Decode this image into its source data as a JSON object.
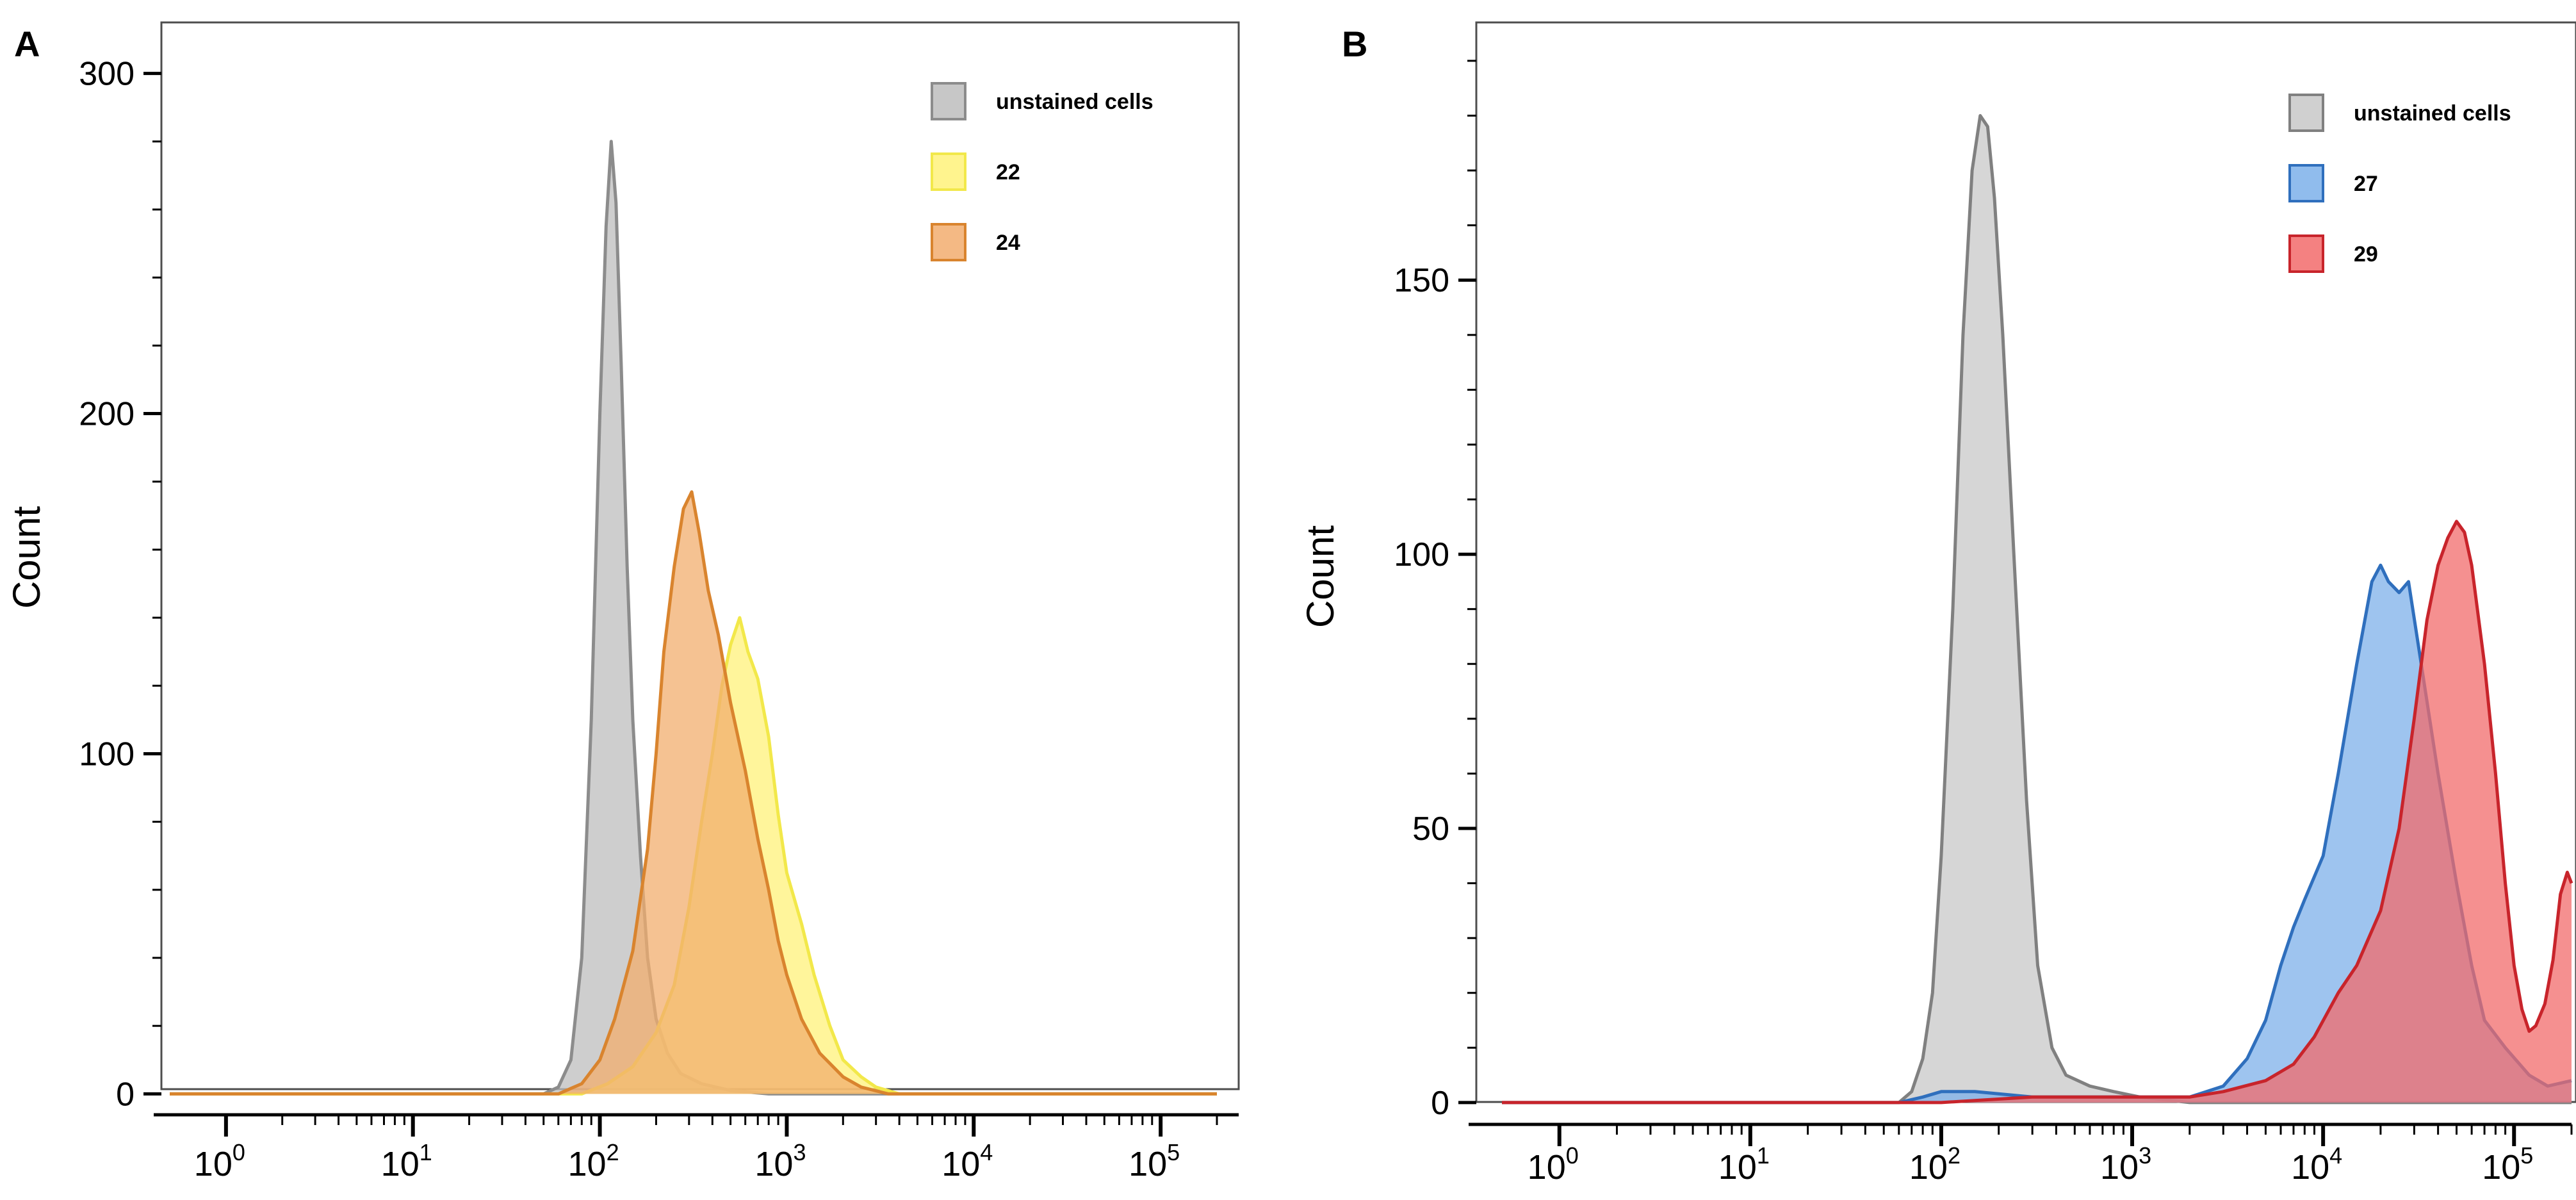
{
  "chart_data": [
    {
      "panel": "A",
      "type": "area",
      "title": "",
      "xlabel": "",
      "ylabel": "Count",
      "xscale": "log",
      "xlim": [
        0.5,
        200000
      ],
      "ylim": [
        -2,
        315
      ],
      "yticks": [
        0,
        100,
        200,
        300
      ],
      "xticks": [
        {
          "base": "10",
          "exp": "0",
          "value": 1
        },
        {
          "base": "10",
          "exp": "1",
          "value": 10
        },
        {
          "base": "10",
          "exp": "2",
          "value": 100
        },
        {
          "base": "10",
          "exp": "3",
          "value": 1000
        },
        {
          "base": "10",
          "exp": "4",
          "value": 10000
        },
        {
          "base": "10",
          "exp": "5",
          "value": 100000
        }
      ],
      "legend_position": "top-right",
      "series": [
        {
          "name": "unstained cells",
          "color": "#8c8c8c",
          "fill": "#bdbdbd",
          "points": [
            [
              0.5,
              0
            ],
            [
              50,
              0
            ],
            [
              60,
              2
            ],
            [
              70,
              10
            ],
            [
              80,
              40
            ],
            [
              90,
              110
            ],
            [
              100,
              200
            ],
            [
              108,
              255
            ],
            [
              115,
              280
            ],
            [
              122,
              262
            ],
            [
              130,
              215
            ],
            [
              140,
              155
            ],
            [
              150,
              110
            ],
            [
              165,
              70
            ],
            [
              180,
              40
            ],
            [
              200,
              22
            ],
            [
              230,
              12
            ],
            [
              270,
              6
            ],
            [
              350,
              3
            ],
            [
              500,
              1
            ],
            [
              800,
              0
            ],
            [
              200000,
              0
            ]
          ]
        },
        {
          "name": "22",
          "color": "#f2e84a",
          "fill": "#fff27a",
          "points": [
            [
              0.5,
              0
            ],
            [
              80,
              0
            ],
            [
              110,
              3
            ],
            [
              150,
              8
            ],
            [
              200,
              18
            ],
            [
              250,
              32
            ],
            [
              300,
              55
            ],
            [
              350,
              80
            ],
            [
              400,
              100
            ],
            [
              450,
              120
            ],
            [
              500,
              132
            ],
            [
              560,
              140
            ],
            [
              620,
              130
            ],
            [
              700,
              122
            ],
            [
              800,
              105
            ],
            [
              900,
              82
            ],
            [
              1000,
              65
            ],
            [
              1200,
              50
            ],
            [
              1400,
              35
            ],
            [
              1700,
              20
            ],
            [
              2000,
              10
            ],
            [
              2500,
              5
            ],
            [
              3000,
              2
            ],
            [
              4000,
              0
            ],
            [
              200000,
              0
            ]
          ]
        },
        {
          "name": "24",
          "color": "#d9842e",
          "fill": "#f2ad6e",
          "points": [
            [
              0.5,
              0
            ],
            [
              60,
              0
            ],
            [
              80,
              3
            ],
            [
              100,
              10
            ],
            [
              120,
              22
            ],
            [
              150,
              42
            ],
            [
              180,
              72
            ],
            [
              200,
              100
            ],
            [
              220,
              130
            ],
            [
              250,
              155
            ],
            [
              280,
              172
            ],
            [
              310,
              177
            ],
            [
              340,
              165
            ],
            [
              380,
              148
            ],
            [
              430,
              135
            ],
            [
              500,
              115
            ],
            [
              600,
              95
            ],
            [
              700,
              75
            ],
            [
              800,
              60
            ],
            [
              900,
              45
            ],
            [
              1000,
              35
            ],
            [
              1200,
              22
            ],
            [
              1500,
              12
            ],
            [
              2000,
              5
            ],
            [
              2500,
              2
            ],
            [
              3500,
              0
            ],
            [
              200000,
              0
            ]
          ]
        }
      ]
    },
    {
      "panel": "B",
      "type": "area",
      "title": "",
      "xlabel": "",
      "ylabel": "Count",
      "xscale": "log",
      "xlim": [
        0.5,
        200000
      ],
      "ylim": [
        -2,
        197
      ],
      "yticks": [
        0,
        50,
        100,
        150
      ],
      "xticks": [
        {
          "base": "10",
          "exp": "0",
          "value": 1
        },
        {
          "base": "10",
          "exp": "1",
          "value": 10
        },
        {
          "base": "10",
          "exp": "2",
          "value": 100
        },
        {
          "base": "10",
          "exp": "3",
          "value": 1000
        },
        {
          "base": "10",
          "exp": "4",
          "value": 10000
        },
        {
          "base": "10",
          "exp": "5",
          "value": 100000
        }
      ],
      "legend_position": "top-right",
      "series": [
        {
          "name": "unstained cells",
          "color": "#808080",
          "fill": "#c8c8c8",
          "points": [
            [
              0.5,
              0
            ],
            [
              60,
              0
            ],
            [
              70,
              2
            ],
            [
              80,
              8
            ],
            [
              90,
              20
            ],
            [
              100,
              45
            ],
            [
              115,
              90
            ],
            [
              130,
              140
            ],
            [
              145,
              170
            ],
            [
              160,
              180
            ],
            [
              175,
              178
            ],
            [
              190,
              165
            ],
            [
              210,
              140
            ],
            [
              240,
              100
            ],
            [
              280,
              55
            ],
            [
              320,
              25
            ],
            [
              380,
              10
            ],
            [
              450,
              5
            ],
            [
              600,
              3
            ],
            [
              800,
              2
            ],
            [
              1100,
              1
            ],
            [
              2000,
              0
            ],
            [
              200000,
              0
            ]
          ]
        },
        {
          "name": "27",
          "color": "#2f6fbd",
          "fill": "#7db0ea",
          "points": [
            [
              0.5,
              0
            ],
            [
              60,
              0
            ],
            [
              80,
              1
            ],
            [
              100,
              2
            ],
            [
              150,
              2
            ],
            [
              300,
              1
            ],
            [
              1000,
              1
            ],
            [
              2000,
              1
            ],
            [
              3000,
              3
            ],
            [
              4000,
              8
            ],
            [
              5000,
              15
            ],
            [
              6000,
              25
            ],
            [
              7000,
              32
            ],
            [
              8000,
              37
            ],
            [
              10000,
              45
            ],
            [
              12000,
              60
            ],
            [
              15000,
              80
            ],
            [
              18000,
              95
            ],
            [
              20000,
              98
            ],
            [
              22000,
              95
            ],
            [
              25000,
              93
            ],
            [
              28000,
              95
            ],
            [
              32000,
              82
            ],
            [
              40000,
              60
            ],
            [
              50000,
              40
            ],
            [
              60000,
              25
            ],
            [
              70000,
              15
            ],
            [
              90000,
              10
            ],
            [
              120000,
              5
            ],
            [
              150000,
              3
            ],
            [
              200000,
              4
            ]
          ]
        },
        {
          "name": "29",
          "color": "#c8242b",
          "fill": "#f26b6b",
          "points": [
            [
              0.5,
              0
            ],
            [
              60,
              0
            ],
            [
              100,
              0
            ],
            [
              300,
              1
            ],
            [
              1000,
              1
            ],
            [
              2000,
              1
            ],
            [
              3000,
              2
            ],
            [
              5000,
              4
            ],
            [
              7000,
              7
            ],
            [
              9000,
              12
            ],
            [
              12000,
              20
            ],
            [
              15000,
              25
            ],
            [
              20000,
              35
            ],
            [
              25000,
              50
            ],
            [
              30000,
              70
            ],
            [
              35000,
              88
            ],
            [
              40000,
              98
            ],
            [
              45000,
              103
            ],
            [
              50000,
              106
            ],
            [
              55000,
              104
            ],
            [
              60000,
              98
            ],
            [
              70000,
              80
            ],
            [
              80000,
              60
            ],
            [
              90000,
              40
            ],
            [
              100000,
              25
            ],
            [
              110000,
              17
            ],
            [
              120000,
              13
            ],
            [
              130000,
              14
            ],
            [
              145000,
              18
            ],
            [
              160000,
              26
            ],
            [
              175000,
              38
            ],
            [
              190000,
              42
            ],
            [
              200000,
              40
            ]
          ]
        }
      ]
    }
  ],
  "panels": {
    "A": {
      "label": "A"
    },
    "B": {
      "label": "B"
    }
  }
}
